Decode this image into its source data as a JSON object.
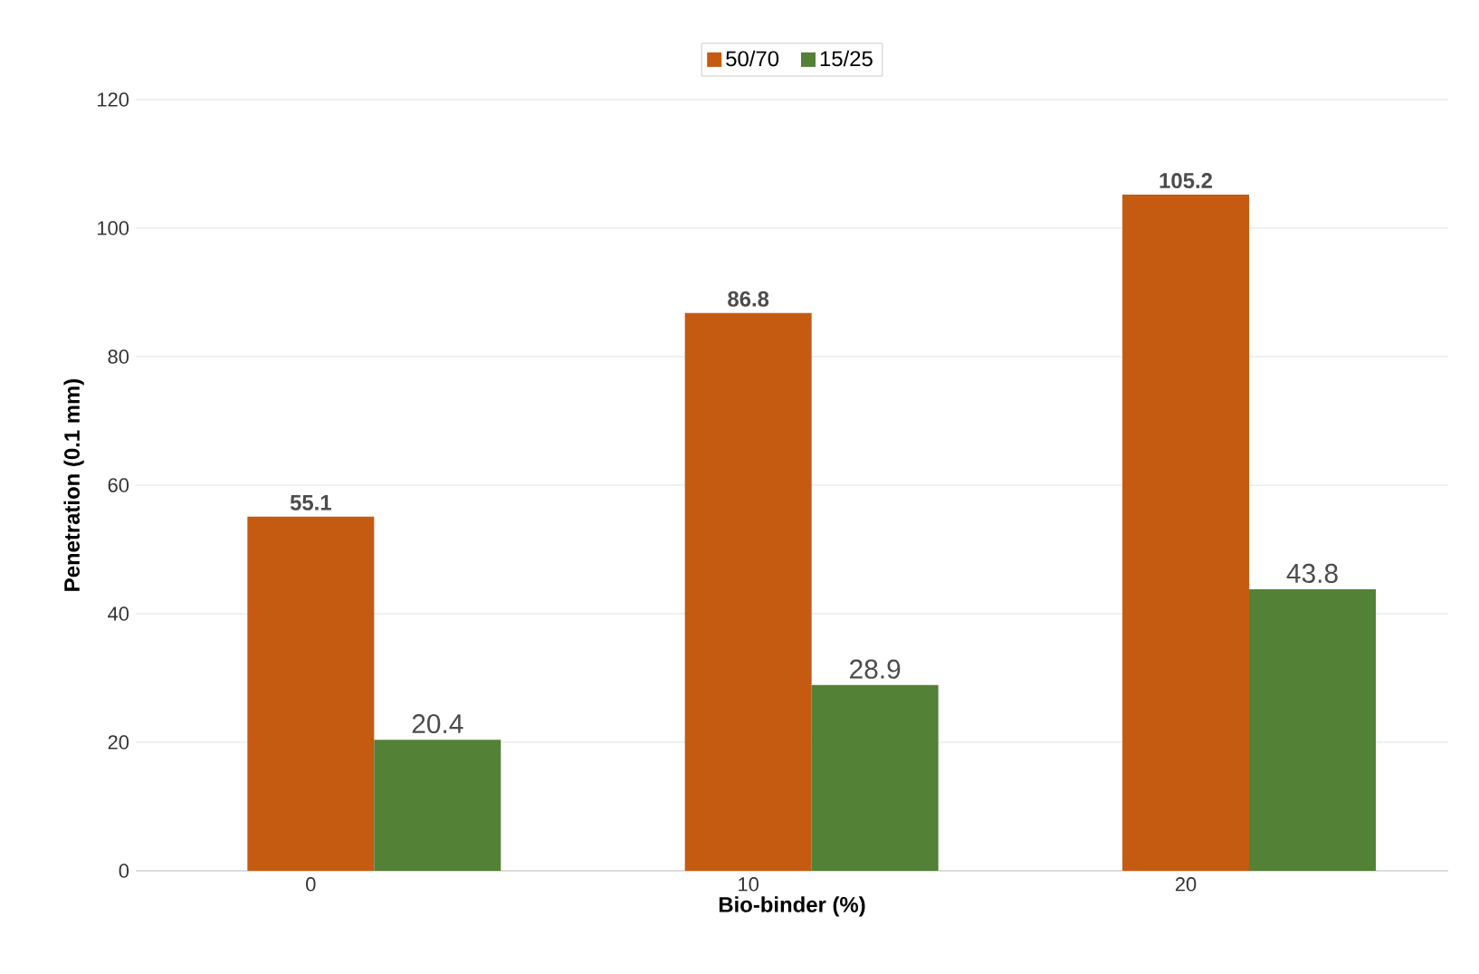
{
  "chart_data": {
    "type": "bar",
    "xlabel": "**Bio-binder (%)**",
    "ylabel": "**Penetration (0.1 mm)**",
    "categories": [
      "0",
      "10",
      "20"
    ],
    "series": [
      {
        "name": "50/70",
        "color": "#c55a11",
        "values": [
          55.1,
          86.8,
          105.2
        ]
      },
      {
        "name": "15/25",
        "color": "#538135",
        "values": [
          20.4,
          28.9,
          43.8
        ]
      }
    ],
    "ylim": [
      0,
      120
    ],
    "yticks": [
      0,
      20,
      40,
      60,
      80,
      100,
      120
    ],
    "grid": "y",
    "legend": "top",
    "data_labels": true
  }
}
